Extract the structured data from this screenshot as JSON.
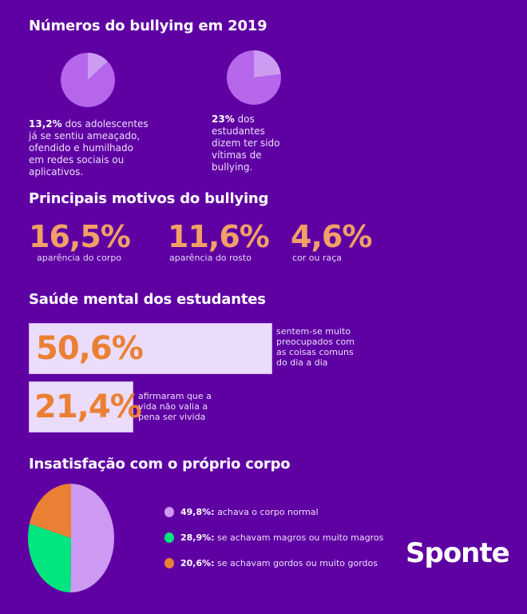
{
  "section1": {
    "title": "Números do bullying em 2019",
    "stat1": {
      "value": "13,2%",
      "text": " dos adolescentes já se sentiu ameaçado, ofendido e humilhado em redes sociais ou aplicativos."
    },
    "stat2": {
      "value": "23%",
      "text": " dos estudantes dizem ter sido vítimas de bullying."
    }
  },
  "section2": {
    "title": "Principais motivos do bullying",
    "items": [
      {
        "value": "16,5%",
        "label": "aparência do corpo"
      },
      {
        "value": "11,6%",
        "label": "aparência do rosto"
      },
      {
        "value": "4,6%",
        "label": "cor ou raça"
      }
    ]
  },
  "section3": {
    "title": "Saúde mental dos estudantes",
    "items": [
      {
        "value": "50,6%",
        "label": "sentem-se muito preocupados com as coisas comuns do dia a dia"
      },
      {
        "value": "21,4%",
        "label": "afirmaram que a vida não valia a pena ser vivida"
      }
    ]
  },
  "section4": {
    "title": "Insatisfação com o próprio corpo"
  },
  "logo": "Sponte",
  "colors": {
    "background": "#5f00a3",
    "pie_base": "#b566ea",
    "pie_slice": "#cc9cf2",
    "accent": "#ea8034"
  },
  "chart_data": [
    {
      "type": "pie",
      "values": [
        13.2,
        86.8
      ],
      "colors": [
        "#cc9cf2",
        "#b566ea"
      ]
    },
    {
      "type": "pie",
      "values": [
        23,
        77
      ],
      "colors": [
        "#cc9cf2",
        "#b566ea"
      ]
    },
    {
      "type": "pie",
      "categories": [
        "achava o corpo normal",
        "se achavam magros ou muito magros",
        "se achavam gordos ou muito gordos"
      ],
      "values": [
        49.8,
        28.9,
        20.6
      ],
      "labels": [
        "49,8%:",
        "28,9%:",
        "20,6%:"
      ],
      "colors": [
        "#cd99f3",
        "#00e57d",
        "#ea8034"
      ],
      "legend": "right"
    }
  ]
}
